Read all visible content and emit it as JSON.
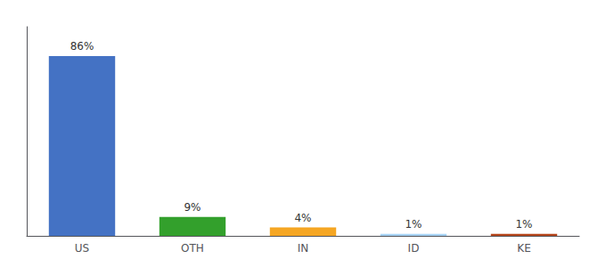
{
  "chart_data": {
    "type": "bar",
    "categories": [
      "US",
      "OTH",
      "IN",
      "ID",
      "KE"
    ],
    "values": [
      86,
      9,
      4,
      1,
      1
    ],
    "value_labels": [
      "86%",
      "9%",
      "4%",
      "1%",
      "1%"
    ],
    "data_labels": true,
    "colors": [
      "#4472c4",
      "#33a02c",
      "#f5a623",
      "#a8d4f5",
      "#b5451b"
    ],
    "ylim": [
      0,
      100
    ],
    "grid": false,
    "tick_labels": "x"
  }
}
